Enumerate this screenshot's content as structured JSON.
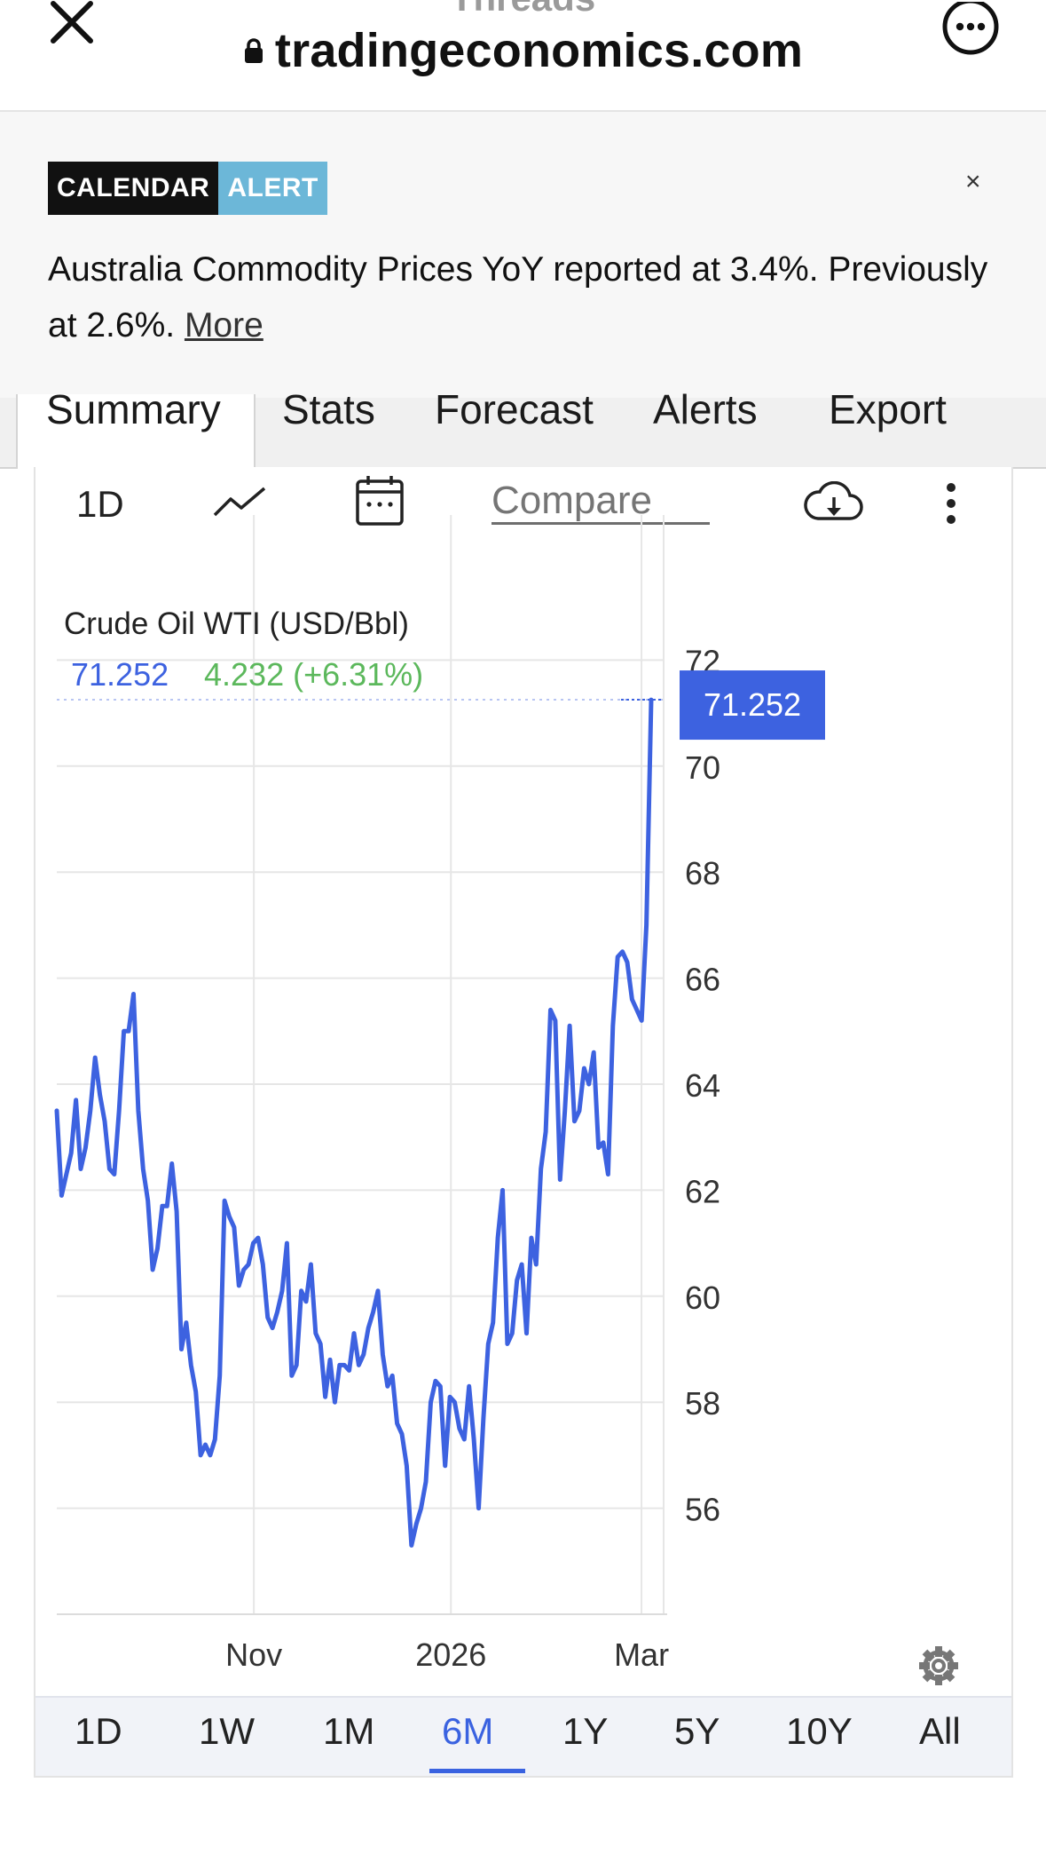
{
  "browser": {
    "title": "Threads",
    "url": "tradingeconomics.com"
  },
  "alert": {
    "badge_left": "CALENDAR",
    "badge_right": "ALERT",
    "close_glyph": "×",
    "text": "Australia Commodity Prices YoY reported at 3.4%. Previously at 2.6%.",
    "more_link": "More"
  },
  "tabs": [
    {
      "label": "Summary",
      "active": true
    },
    {
      "label": "Stats",
      "active": false
    },
    {
      "label": "Forecast",
      "active": false
    },
    {
      "label": "Alerts",
      "active": false
    },
    {
      "label": "Export",
      "active": false
    }
  ],
  "toolbar": {
    "interval": "1D",
    "icons": [
      "line-chart-icon",
      "calendar-icon",
      "cloud-download-icon",
      "kebab-menu-icon"
    ],
    "compare_placeholder": "Compare"
  },
  "chart_data": {
    "type": "line",
    "title": "Crude Oil WTI (USD/Bbl)",
    "last_value": "71.252",
    "change": "4.232 (+6.31%)",
    "last_price_label": "71.252",
    "color": "#3d62e0",
    "xlabel": "",
    "ylabel": "",
    "ylim": [
      54,
      74
    ],
    "y_ticks": [
      "72",
      "70",
      "68",
      "66",
      "64",
      "62",
      "60",
      "58",
      "56"
    ],
    "x_tick_labels": [
      "Nov",
      "2026",
      "Mar"
    ],
    "grid": true,
    "series": [
      {
        "values": [
          63.5,
          61.9,
          62.3,
          62.7,
          63.7,
          62.4,
          62.8,
          63.5,
          64.5,
          63.8,
          63.3,
          62.4,
          62.3,
          63.5,
          65.0,
          65.0,
          65.7,
          63.5,
          62.4,
          61.8,
          60.5,
          60.9,
          61.7,
          61.7,
          62.5,
          61.6,
          59.0,
          59.5,
          58.7,
          58.2,
          57.0,
          57.2,
          57.0,
          57.3,
          58.5,
          61.8,
          61.5,
          61.3,
          60.2,
          60.5,
          60.6,
          61.0,
          61.1,
          60.6,
          59.6,
          59.4,
          59.7,
          60.1,
          61.0,
          58.5,
          58.7,
          60.1,
          59.9,
          60.6,
          59.3,
          59.1,
          58.1,
          58.8,
          58.0,
          58.7,
          58.7,
          58.6,
          59.3,
          58.7,
          58.9,
          59.4,
          59.7,
          60.1,
          58.9,
          58.3,
          58.5,
          57.6,
          57.4,
          56.8,
          55.3,
          55.7,
          56.0,
          56.5,
          58.0,
          58.4,
          58.3,
          56.8,
          58.1,
          58.0,
          57.5,
          57.3,
          58.3,
          57.3,
          56.0,
          57.7,
          59.1,
          59.5,
          61.1,
          62.0,
          59.1,
          59.3,
          60.3,
          60.6,
          59.3,
          61.1,
          60.6,
          62.4,
          63.1,
          65.4,
          65.2,
          62.2,
          63.5,
          65.1,
          63.3,
          63.5,
          64.3,
          64.0,
          64.6,
          62.8,
          62.9,
          62.3,
          65.1,
          66.4,
          66.5,
          66.3,
          65.6,
          65.4,
          65.2,
          67.0,
          71.252
        ],
        "dates": [
          "2025-09-01",
          "2026-03-04"
        ]
      }
    ]
  },
  "ranges": [
    {
      "label": "1D",
      "active": false
    },
    {
      "label": "1W",
      "active": false
    },
    {
      "label": "1M",
      "active": false
    },
    {
      "label": "6M",
      "active": true
    },
    {
      "label": "1Y",
      "active": false
    },
    {
      "label": "5Y",
      "active": false
    },
    {
      "label": "10Y",
      "active": false
    },
    {
      "label": "All",
      "active": false
    }
  ]
}
